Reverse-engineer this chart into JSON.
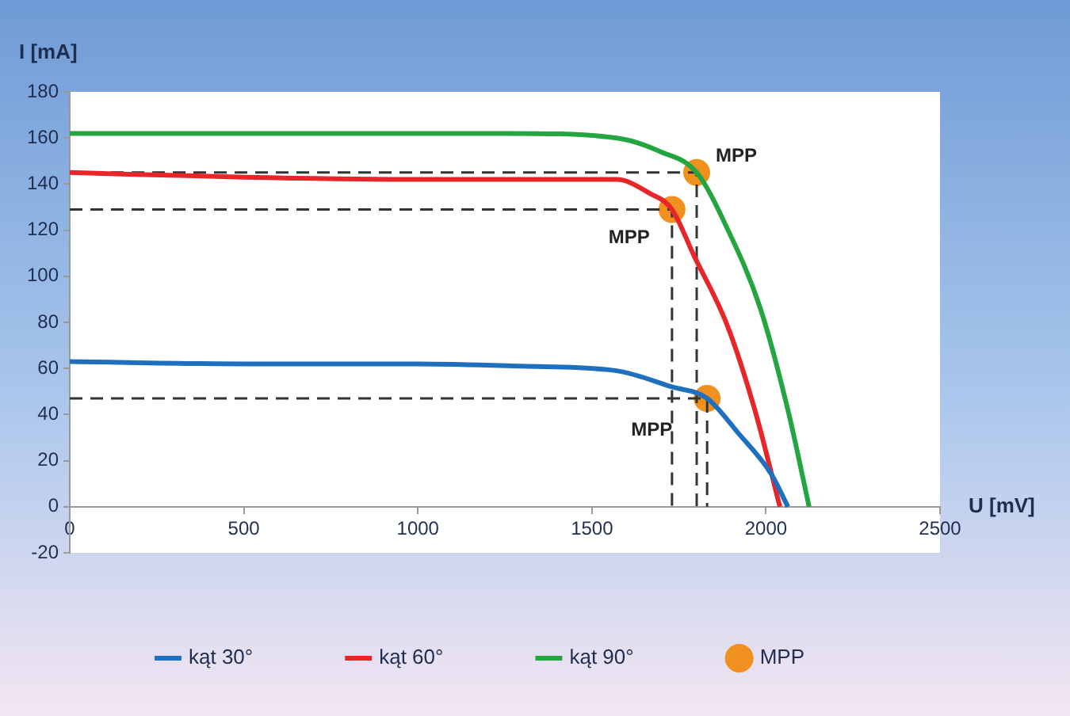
{
  "chart_data": {
    "type": "line",
    "xlabel": "U [mV]",
    "ylabel": "I [mA]",
    "xlim": [
      0,
      2500
    ],
    "xticks": [
      0,
      500,
      1000,
      1500,
      2000,
      2500
    ],
    "ylim": [
      -20,
      180
    ],
    "yticks": [
      -20,
      0,
      20,
      40,
      60,
      80,
      100,
      120,
      140,
      160,
      180
    ],
    "grid": false,
    "legend": "bottom",
    "marker": "none",
    "line_style": "solid",
    "series": [
      {
        "name": "kąt 30°",
        "color": "#1f6fbf",
        "x": [
          0,
          500,
          1000,
          1300,
          1571,
          1730,
          1831,
          1920,
          2016,
          2063
        ],
        "values": [
          63,
          62,
          62,
          61,
          59,
          52,
          47,
          32,
          14,
          0
        ]
      },
      {
        "name": "kąt 60°",
        "color": "#e8262a",
        "x": [
          0,
          500,
          1000,
          1250,
          1571,
          1666,
          1730,
          1793,
          1888,
          1968,
          2040
        ],
        "values": [
          145,
          143,
          142,
          142,
          142,
          136,
          129,
          109,
          79,
          42,
          0
        ]
      },
      {
        "name": "kąt 90°",
        "color": "#23a640",
        "x": [
          0,
          500,
          1000,
          1250,
          1571,
          1698,
          1801,
          1888,
          1984,
          2063,
          2124
        ],
        "values": [
          162,
          162,
          162,
          162,
          160,
          154,
          145,
          121,
          86,
          42,
          0
        ]
      },
      {
        "color": "#333333",
        "line_style": "dashed",
        "x": [
          0,
          1831,
          1831
        ],
        "values": [
          47,
          47,
          0
        ]
      },
      {
        "color": "#333333",
        "line_style": "dashed",
        "x": [
          0,
          1730,
          1730
        ],
        "values": [
          129,
          129,
          0
        ]
      },
      {
        "color": "#333333",
        "line_style": "dashed",
        "x": [
          0,
          1801,
          1801
        ],
        "values": [
          145,
          145,
          0
        ]
      },
      {
        "name": "MPP",
        "type": "scatter",
        "marker": "circle",
        "color": "#f0901e",
        "x": [
          1831,
          1730,
          1801
        ],
        "values": [
          47,
          129,
          145
        ]
      }
    ],
    "annotations": [
      {
        "text": "MPP",
        "x": 1801,
        "y": 145
      },
      {
        "text": "MPP",
        "x": 1730,
        "y": 129
      },
      {
        "text": "MPP",
        "x": 1831,
        "y": 47
      }
    ]
  }
}
